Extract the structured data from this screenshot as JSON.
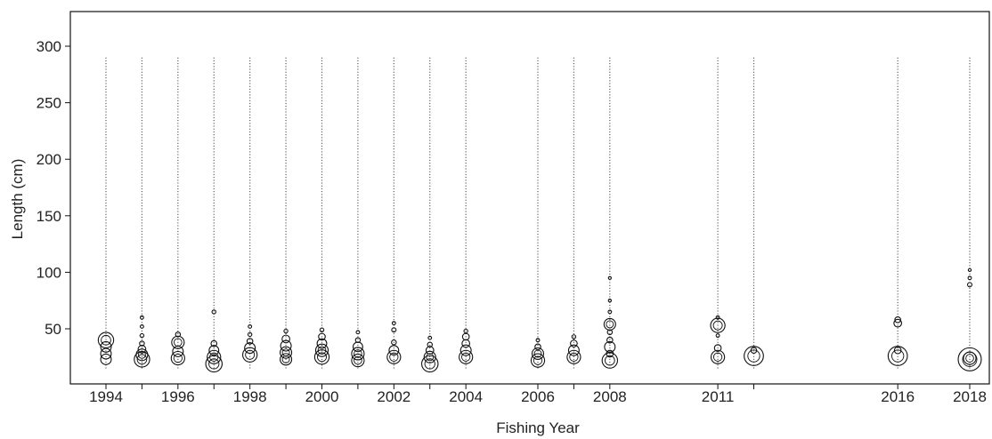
{
  "chart_data": {
    "type": "scatter",
    "subtype": "bubble-length-frequency",
    "xlabel": "Fishing Year",
    "ylabel": "Length (cm)",
    "ylim": [
      15,
      330
    ],
    "yticks": [
      50,
      100,
      150,
      200,
      250,
      300
    ],
    "grid": false,
    "legend": "none",
    "x_tick_labels": [
      "1994",
      "1996",
      "1998",
      "2000",
      "2002",
      "2004",
      "2006",
      "2008",
      "2011",
      "2016",
      "2018"
    ],
    "line_range_cm": [
      15,
      290
    ],
    "years": [
      {
        "year": 1994,
        "labeled": true,
        "bubbles": [
          {
            "length": 40,
            "size": 3.2
          },
          {
            "length": 34,
            "size": 2.2
          },
          {
            "length": 28,
            "size": 2.2
          },
          {
            "length": 23,
            "size": 2.2
          }
        ]
      },
      {
        "year": 1995,
        "labeled": false,
        "bubbles": [
          {
            "length": 23,
            "size": 3.2
          },
          {
            "length": 27,
            "size": 2.4
          },
          {
            "length": 32,
            "size": 1.6
          },
          {
            "length": 37,
            "size": 1.0
          },
          {
            "length": 44,
            "size": 0.8
          },
          {
            "length": 52,
            "size": 0.7
          },
          {
            "length": 60,
            "size": 0.7
          }
        ]
      },
      {
        "year": 1996,
        "labeled": true,
        "bubbles": [
          {
            "length": 24,
            "size": 2.8
          },
          {
            "length": 30,
            "size": 2.2
          },
          {
            "length": 38,
            "size": 2.6
          },
          {
            "length": 45,
            "size": 1.0
          }
        ]
      },
      {
        "year": 1997,
        "labeled": false,
        "bubbles": [
          {
            "length": 19,
            "size": 3.4
          },
          {
            "length": 25,
            "size": 2.8
          },
          {
            "length": 31,
            "size": 2.0
          },
          {
            "length": 37,
            "size": 1.2
          },
          {
            "length": 65,
            "size": 0.8
          }
        ]
      },
      {
        "year": 1998,
        "labeled": true,
        "bubbles": [
          {
            "length": 27,
            "size": 3.0
          },
          {
            "length": 33,
            "size": 2.2
          },
          {
            "length": 39,
            "size": 1.2
          },
          {
            "length": 45,
            "size": 0.8
          },
          {
            "length": 52,
            "size": 0.7
          }
        ]
      },
      {
        "year": 1999,
        "labeled": false,
        "bubbles": [
          {
            "length": 23,
            "size": 2.4
          },
          {
            "length": 29,
            "size": 2.4
          },
          {
            "length": 35,
            "size": 2.2
          },
          {
            "length": 41,
            "size": 1.6
          },
          {
            "length": 48,
            "size": 0.8
          }
        ]
      },
      {
        "year": 2000,
        "labeled": true,
        "bubbles": [
          {
            "length": 25,
            "size": 3.0
          },
          {
            "length": 31,
            "size": 2.6
          },
          {
            "length": 37,
            "size": 2.0
          },
          {
            "length": 43,
            "size": 1.4
          },
          {
            "length": 49,
            "size": 0.8
          }
        ]
      },
      {
        "year": 2001,
        "labeled": false,
        "bubbles": [
          {
            "length": 22,
            "size": 2.6
          },
          {
            "length": 28,
            "size": 2.6
          },
          {
            "length": 34,
            "size": 2.0
          },
          {
            "length": 40,
            "size": 1.0
          },
          {
            "length": 47,
            "size": 0.7
          }
        ]
      },
      {
        "year": 2002,
        "labeled": true,
        "bubbles": [
          {
            "length": 25,
            "size": 2.8
          },
          {
            "length": 31,
            "size": 2.0
          },
          {
            "length": 38,
            "size": 1.0
          },
          {
            "length": 49,
            "size": 0.9
          },
          {
            "length": 55,
            "size": 0.7
          }
        ]
      },
      {
        "year": 2003,
        "labeled": false,
        "bubbles": [
          {
            "length": 19,
            "size": 3.4
          },
          {
            "length": 25,
            "size": 2.4
          },
          {
            "length": 31,
            "size": 1.6
          },
          {
            "length": 36,
            "size": 1.0
          },
          {
            "length": 42,
            "size": 0.7
          }
        ]
      },
      {
        "year": 2004,
        "labeled": true,
        "bubbles": [
          {
            "length": 25,
            "size": 2.8
          },
          {
            "length": 31,
            "size": 2.2
          },
          {
            "length": 37,
            "size": 1.6
          },
          {
            "length": 43,
            "size": 1.4
          },
          {
            "length": 48,
            "size": 0.8
          }
        ]
      },
      {
        "year": 2006,
        "labeled": true,
        "bubbles": [
          {
            "length": 22,
            "size": 2.8
          },
          {
            "length": 28,
            "size": 2.4
          },
          {
            "length": 34,
            "size": 1.2
          },
          {
            "length": 40,
            "size": 0.7
          }
        ]
      },
      {
        "year": 2007,
        "labeled": false,
        "bubbles": [
          {
            "length": 25,
            "size": 2.8
          },
          {
            "length": 31,
            "size": 2.2
          },
          {
            "length": 37,
            "size": 1.4
          },
          {
            "length": 43,
            "size": 0.8
          }
        ]
      },
      {
        "year": 2008,
        "labeled": true,
        "bubbles": [
          {
            "length": 22,
            "size": 3.2
          },
          {
            "length": 28,
            "size": 1.4
          },
          {
            "length": 34,
            "size": 2.2
          },
          {
            "length": 40,
            "size": 1.2
          },
          {
            "length": 47,
            "size": 1.0
          },
          {
            "length": 54,
            "size": 2.4
          },
          {
            "length": 65,
            "size": 0.7
          },
          {
            "length": 75,
            "size": 0.6
          },
          {
            "length": 95,
            "size": 0.6
          }
        ]
      },
      {
        "year": 2011,
        "labeled": true,
        "bubbles": [
          {
            "length": 25,
            "size": 2.8
          },
          {
            "length": 33,
            "size": 1.4
          },
          {
            "length": 44,
            "size": 0.7
          },
          {
            "length": 53,
            "size": 3.0
          },
          {
            "length": 60,
            "size": 0.7
          }
        ]
      },
      {
        "year": 2012,
        "labeled": false,
        "bubbles": [
          {
            "length": 26,
            "size": 4.0
          },
          {
            "length": 31,
            "size": 1.2
          }
        ]
      },
      {
        "year": 2016,
        "labeled": true,
        "bubbles": [
          {
            "length": 26,
            "size": 4.0
          },
          {
            "length": 31,
            "size": 1.4
          },
          {
            "length": 55,
            "size": 1.6
          },
          {
            "length": 58,
            "size": 1.2
          }
        ]
      },
      {
        "year": 2018,
        "labeled": true,
        "bubbles": [
          {
            "length": 23,
            "size": 4.8
          },
          {
            "length": 24,
            "size": 2.6
          },
          {
            "length": 89,
            "size": 0.9
          },
          {
            "length": 95,
            "size": 0.7
          },
          {
            "length": 102,
            "size": 0.6
          }
        ]
      }
    ]
  }
}
